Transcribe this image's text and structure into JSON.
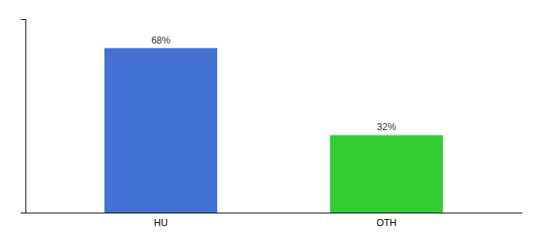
{
  "chart_data": {
    "type": "bar",
    "categories": [
      "HU",
      "OTH"
    ],
    "values": [
      68,
      32
    ],
    "value_labels": [
      "68%",
      "32%"
    ],
    "colors": [
      "#4472d4",
      "#33cc33"
    ],
    "ylim": [
      0,
      80
    ],
    "yticks": [],
    "tick_labels": "x",
    "data_labels": true
  }
}
